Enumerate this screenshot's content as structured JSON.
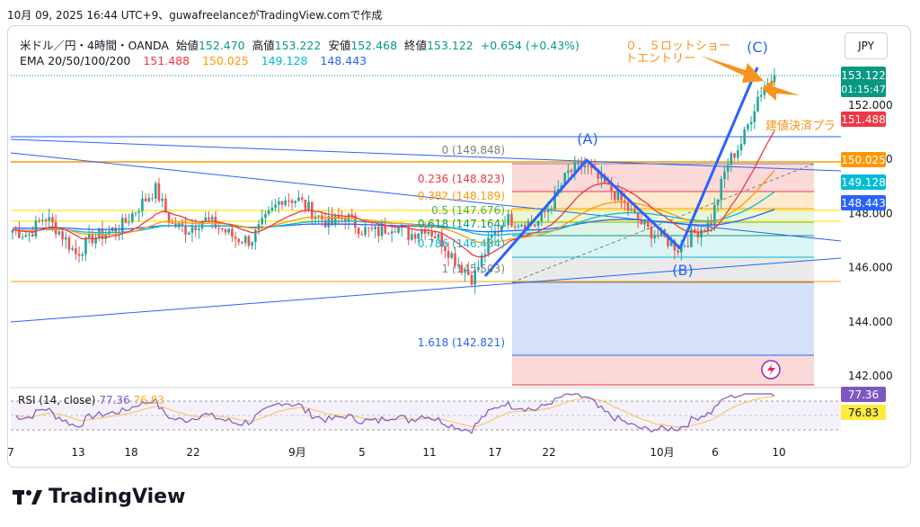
{
  "header": {
    "timestamp_line": "10月 09, 2025 16:44 UTC+9、guwafreelanceがTradingView.comで作成"
  },
  "legend": {
    "symbol": "米ドル／円・4時間・OANDA",
    "open_label": "始値",
    "open": "152.470",
    "high_label": "高値",
    "high": "153.222",
    "low_label": "安値",
    "low": "152.468",
    "close_label": "終値",
    "close": "153.122",
    "change": "+0.654 (+0.43%)",
    "ema_label": "EMA 20/50/100/200",
    "ema20": "151.488",
    "ema50": "150.025",
    "ema100": "149.128",
    "ema200": "148.443"
  },
  "currency": "JPY",
  "annotations": {
    "entry_note": [
      "０．５ロットショー",
      "トエントリー"
    ],
    "breakeven_note": "建値決済プラ",
    "wave_a": "(A)",
    "wave_b": "(B)",
    "wave_c": "(C)"
  },
  "price_badges": {
    "last_price": "153.122",
    "countdown": "01:15:47",
    "ema20": "151.488",
    "ema50": "150.025",
    "ema100": "149.128",
    "ema200": "148.443",
    "rsi": "77.36",
    "rsi_ma": "76.83"
  },
  "rsi": {
    "label": "RSI (14, close)",
    "value": "77.36",
    "ma": "76.83"
  },
  "brand": "TradingView",
  "colors": {
    "up": "#26a69a",
    "down": "#ef5350",
    "ema20": "#f23645",
    "ema50": "#ff9800",
    "ema100": "#00bcd4",
    "ema200": "#2962ff",
    "wave": "#2962ff",
    "note": "#f7931a",
    "rsi": "#7e57c2"
  },
  "chart_data": {
    "type": "candlestick",
    "symbol": "USD/JPY",
    "timeframe": "4H",
    "y_axis": {
      "ticks": [
        142,
        144,
        146,
        148,
        150,
        152
      ],
      "range": [
        141.4,
        154.3
      ]
    },
    "x_axis": {
      "ticks": [
        "7",
        "13",
        "18",
        "22",
        "9月",
        "5",
        "11",
        "17",
        "22",
        "10月",
        "6",
        "10"
      ]
    },
    "close_path": [
      [
        "Aug 07",
        147.4
      ],
      [
        "Aug 09",
        147.2
      ],
      [
        "Aug 11",
        147.9
      ],
      [
        "Aug 13",
        147.3
      ],
      [
        "Aug 14",
        146.5
      ],
      [
        "Aug 16",
        147.1
      ],
      [
        "Aug 18",
        147.3
      ],
      [
        "Aug 20",
        147.6
      ],
      [
        "Aug 21",
        148.3
      ],
      [
        "Aug 22",
        148.9
      ],
      [
        "Aug 23",
        147.6
      ],
      [
        "Aug 25",
        147.4
      ],
      [
        "Aug 27",
        147.8
      ],
      [
        "Aug 28",
        147.5
      ],
      [
        "Aug 30",
        147.1
      ],
      [
        "Sep 01",
        147.0
      ],
      [
        "Sep 02",
        147.8
      ],
      [
        "Sep 03",
        148.6
      ],
      [
        "Sep 04",
        148.5
      ],
      [
        "Sep 05",
        148.0
      ],
      [
        "Sep 06",
        147.6
      ],
      [
        "Sep 08",
        147.9
      ],
      [
        "Sep 09",
        147.4
      ],
      [
        "Sep 10",
        147.3
      ],
      [
        "Sep 11",
        147.6
      ],
      [
        "Sep 12",
        147.2
      ],
      [
        "Sep 14",
        147.5
      ],
      [
        "Sep 15",
        147.0
      ],
      [
        "Sep 16",
        146.2
      ],
      [
        "Sep 17",
        145.6
      ],
      [
        "Sep 18",
        146.9
      ],
      [
        "Sep 19",
        147.8
      ],
      [
        "Sep 21",
        147.7
      ],
      [
        "Sep 23",
        147.6
      ],
      [
        "Sep 24",
        148.4
      ],
      [
        "Sep 25",
        149.5
      ],
      [
        "Sep 26",
        149.8
      ],
      [
        "Sep 28",
        149.2
      ],
      [
        "Sep 29",
        148.7
      ],
      [
        "Sep 30",
        148.0
      ],
      [
        "Oct 01",
        147.4
      ],
      [
        "Oct 02",
        147.1
      ],
      [
        "Oct 03",
        146.7
      ],
      [
        "Oct 04",
        147.3
      ],
      [
        "Oct 05",
        147.7
      ],
      [
        "Oct 06",
        149.8
      ],
      [
        "Oct 07",
        150.7
      ],
      [
        "Oct 08",
        152.4
      ],
      [
        "Oct 09",
        153.1
      ]
    ],
    "ema": {
      "20": 151.488,
      "50": 150.025,
      "100": 149.128,
      "200": 148.443
    },
    "fibonacci": [
      {
        "level": "0",
        "price": 149.848
      },
      {
        "level": "0.236",
        "price": 148.823
      },
      {
        "level": "0.382",
        "price": 148.189
      },
      {
        "level": "0.5",
        "price": 147.676
      },
      {
        "level": "0.618",
        "price": 147.164
      },
      {
        "level": "0.786",
        "price": 146.434
      },
      {
        "level": "1",
        "price": 145.503
      },
      {
        "level": "1.618",
        "price": 142.821
      }
    ],
    "elliott_waves": [
      {
        "label": "(A)",
        "price": 149.848
      },
      {
        "label": "(B)",
        "price": 146.7
      },
      {
        "label": "(C)",
        "price": 153.2
      }
    ],
    "rsi": {
      "period": 14,
      "source": "close",
      "value": 77.36,
      "signal": 76.83
    }
  }
}
